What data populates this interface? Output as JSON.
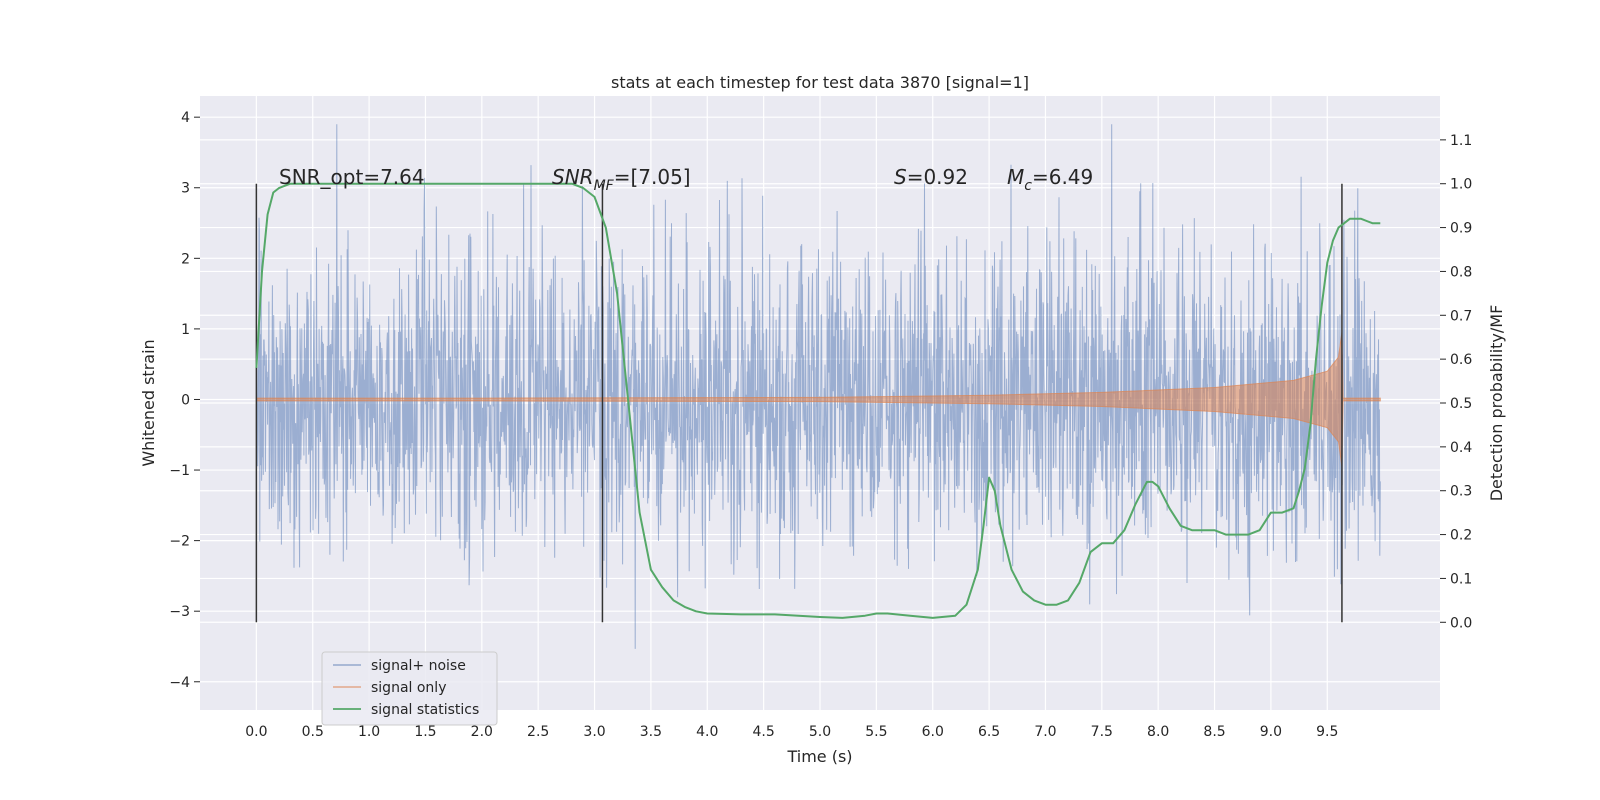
{
  "chart_data": {
    "type": "line",
    "title": "stats at each timestep for test data 3870 [signal=1]",
    "xlabel": "Time (s)",
    "ylabel": "Whitened strain",
    "y2label": "Detection probability/MF",
    "xlim": [
      -0.5,
      10.5
    ],
    "ylim": [
      -4.4,
      4.3
    ],
    "y2lim": [
      -0.2,
      1.2
    ],
    "xticks": [
      "0.0",
      "0.5",
      "1.0",
      "1.5",
      "2.0",
      "2.5",
      "3.0",
      "3.5",
      "4.0",
      "4.5",
      "5.0",
      "5.5",
      "6.0",
      "6.5",
      "7.0",
      "7.5",
      "8.0",
      "8.5",
      "9.0",
      "9.5"
    ],
    "yticks": [
      "−4",
      "−3",
      "−2",
      "−1",
      "0",
      "1",
      "2",
      "3",
      "4"
    ],
    "y2ticks": [
      "0.0",
      "0.1",
      "0.2",
      "0.3",
      "0.4",
      "0.5",
      "0.6",
      "0.7",
      "0.8",
      "0.9",
      "1.0",
      "1.1"
    ],
    "grid": true,
    "legend_position": "lower-left",
    "colors": {
      "noise": "#4c72b0",
      "signal": "#dd8452",
      "stats": "#55a868",
      "vline": "#333333",
      "background": "#eaeaf2",
      "grid": "#ffffff"
    },
    "annotations": {
      "snr_opt": "SNR_opt=7.64",
      "snr_mf_label": "SNR",
      "snr_mf_sub": "MF",
      "snr_mf_value": "=[7.05]",
      "s_label": "S",
      "s_value": "=0.92",
      "mc_label": "M",
      "mc_sub": "c",
      "mc_value": "=6.49"
    },
    "vertical_lines_x": [
      0.0,
      3.07,
      9.63
    ],
    "series": [
      {
        "name": "signal+ noise",
        "description_of_values": "whitened strain noise, approx. uniform over 0.0–9.97 s, amplitude up to about ±3.9",
        "x_range": [
          0.0,
          9.97
        ],
        "amplitude_envelope": 3.9
      },
      {
        "name": "signal only",
        "description_of_values": "chirp growing in amplitude, ending at merger ≈ 9.63 s",
        "x_range": [
          0.0,
          9.97
        ],
        "envelope_points": [
          [
            0.0,
            0.02
          ],
          [
            2.0,
            0.02
          ],
          [
            5.0,
            0.03
          ],
          [
            6.5,
            0.06
          ],
          [
            7.5,
            0.1
          ],
          [
            8.5,
            0.17
          ],
          [
            9.2,
            0.27
          ],
          [
            9.5,
            0.4
          ],
          [
            9.6,
            0.6
          ],
          [
            9.63,
            0.95
          ],
          [
            9.64,
            0.02
          ],
          [
            9.97,
            0.02
          ]
        ]
      },
      {
        "name": "signal statistics",
        "axis": "right",
        "x": [
          0.0,
          0.05,
          0.1,
          0.15,
          0.2,
          0.3,
          0.5,
          1.0,
          2.0,
          2.8,
          2.9,
          3.0,
          3.1,
          3.2,
          3.3,
          3.4,
          3.5,
          3.6,
          3.7,
          3.8,
          3.9,
          4.0,
          4.3,
          4.6,
          5.0,
          5.2,
          5.4,
          5.5,
          5.6,
          5.8,
          6.0,
          6.2,
          6.3,
          6.4,
          6.45,
          6.5,
          6.55,
          6.6,
          6.7,
          6.8,
          6.9,
          7.0,
          7.1,
          7.2,
          7.3,
          7.4,
          7.5,
          7.6,
          7.7,
          7.8,
          7.9,
          7.95,
          8.0,
          8.1,
          8.2,
          8.3,
          8.4,
          8.5,
          8.6,
          8.7,
          8.8,
          8.9,
          9.0,
          9.1,
          9.2,
          9.25,
          9.3,
          9.35,
          9.4,
          9.45,
          9.5,
          9.55,
          9.6,
          9.65,
          9.7,
          9.75,
          9.8,
          9.85,
          9.9,
          9.97
        ],
        "values": [
          0.58,
          0.8,
          0.93,
          0.98,
          0.99,
          1.0,
          1.0,
          1.0,
          1.0,
          1.0,
          0.99,
          0.97,
          0.9,
          0.75,
          0.5,
          0.25,
          0.12,
          0.08,
          0.05,
          0.035,
          0.025,
          0.02,
          0.018,
          0.018,
          0.012,
          0.01,
          0.015,
          0.02,
          0.02,
          0.015,
          0.01,
          0.015,
          0.04,
          0.12,
          0.22,
          0.33,
          0.3,
          0.22,
          0.12,
          0.07,
          0.05,
          0.04,
          0.04,
          0.05,
          0.09,
          0.16,
          0.18,
          0.18,
          0.21,
          0.27,
          0.32,
          0.32,
          0.31,
          0.26,
          0.22,
          0.21,
          0.21,
          0.21,
          0.2,
          0.2,
          0.2,
          0.21,
          0.25,
          0.25,
          0.26,
          0.3,
          0.35,
          0.45,
          0.6,
          0.72,
          0.82,
          0.87,
          0.9,
          0.91,
          0.92,
          0.92,
          0.92,
          0.915,
          0.91,
          0.91
        ]
      }
    ]
  }
}
